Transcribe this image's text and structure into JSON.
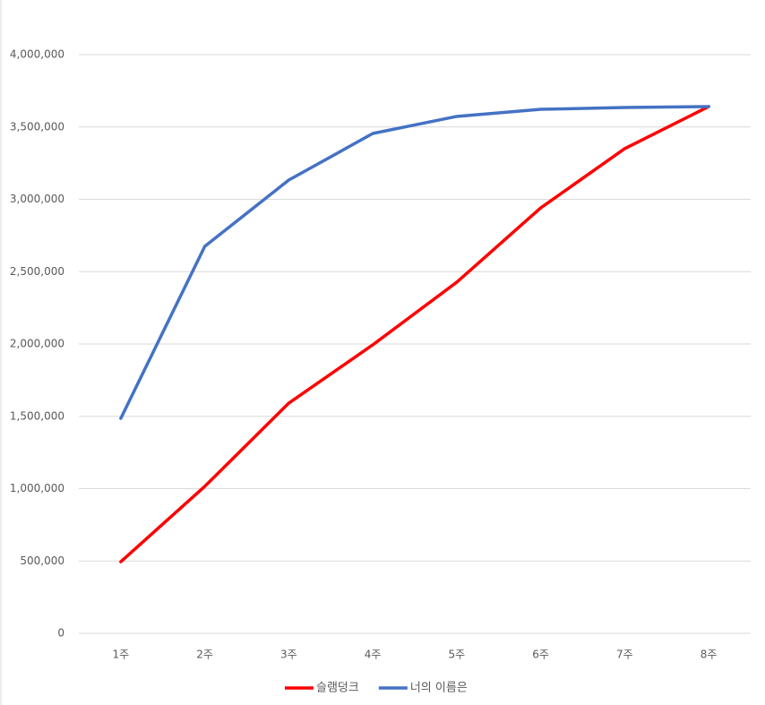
{
  "chart_data": {
    "type": "line",
    "categories": [
      "1주",
      "2주",
      "3주",
      "4주",
      "5주",
      "6주",
      "7주",
      "8주"
    ],
    "series": [
      {
        "name": "슬램덩크",
        "color": "#ff0000",
        "values": [
          495000,
          1016000,
          1591000,
          1994000,
          2427000,
          2941000,
          3350000,
          3641000
        ]
      },
      {
        "name": "너의 이름은",
        "color": "#4472c4",
        "values": [
          1486000,
          2675000,
          3133000,
          3455000,
          3573000,
          3622000,
          3635000,
          3641000
        ]
      }
    ],
    "ylim": [
      0,
      4000000
    ],
    "yticks": [
      0,
      {
        "value": 500000,
        "label": "500,000"
      },
      {
        "value": 1000000,
        "label": "1,000,000"
      },
      {
        "value": 1500000,
        "label": "1,500,000"
      },
      {
        "value": 2000000,
        "label": "2,000,000"
      },
      {
        "value": 2500000,
        "label": "2,500,000"
      },
      {
        "value": 3000000,
        "label": "3,000,000"
      },
      {
        "value": 3500000,
        "label": "3,500,000"
      },
      {
        "value": 4000000,
        "label": "4,000,000"
      }
    ],
    "grid": true,
    "legend": "bottom"
  }
}
